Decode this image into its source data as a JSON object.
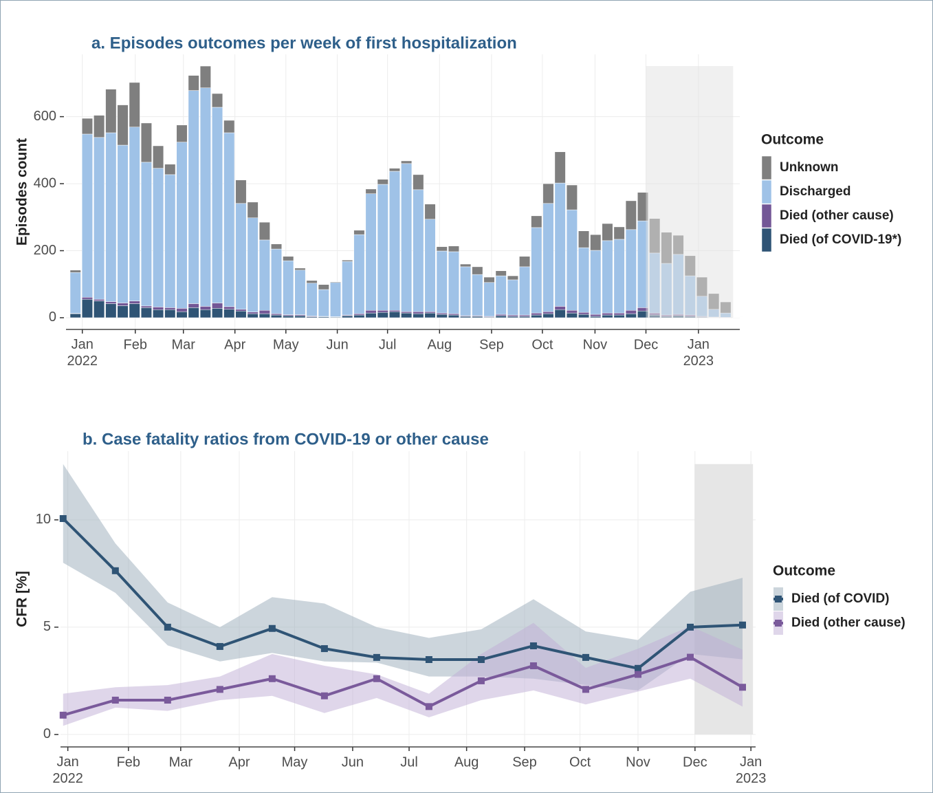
{
  "chart_data": [
    {
      "type": "bar",
      "stacked": true,
      "title": "a. Episodes outcomes per week of first hospitalization",
      "ylabel": "Episodes count",
      "legend_title": "Outcome",
      "categories": [
        null,
        null,
        null,
        null,
        null,
        null,
        null,
        null,
        null,
        null,
        null,
        null,
        null,
        null,
        null,
        null,
        null,
        null,
        null,
        null,
        null,
        null,
        null,
        null,
        null,
        null,
        null,
        null,
        null,
        null,
        null,
        null,
        null,
        null,
        null,
        null,
        null,
        null,
        null,
        null,
        null,
        null,
        null,
        null,
        null,
        null,
        null,
        null,
        null,
        null,
        null,
        null,
        null,
        null,
        null,
        null,
        null
      ],
      "series": [
        {
          "name": "Unknown",
          "color": "#7f7f7f",
          "values": [
            7,
            47,
            66,
            130,
            120,
            133,
            117,
            67,
            31,
            51,
            45,
            65,
            41,
            37,
            70,
            47,
            53,
            15,
            13,
            6,
            8,
            15,
            2,
            4,
            13,
            14,
            15,
            9,
            8,
            45,
            45,
            13,
            17,
            8,
            23,
            16,
            15,
            12,
            31,
            35,
            59,
            93,
            74,
            50,
            47,
            51,
            37,
            86,
            85,
            103,
            93,
            57,
            60,
            57,
            47,
            33,
            1
          ]
        },
        {
          "name": "Discharged",
          "color": "#9fc2e7",
          "values": [
            122,
            487,
            483,
            504,
            471,
            519,
            429,
            414,
            397,
            496,
            636,
            652,
            584,
            519,
            316,
            281,
            210,
            193,
            161,
            133,
            98,
            80,
            102,
            160,
            236,
            348,
            376,
            415,
            442,
            364,
            276,
            185,
            185,
            146,
            123,
            101,
            115,
            105,
            144,
            255,
            323,
            368,
            300,
            193,
            191,
            216,
            220,
            241,
            259,
            179,
            154,
            179,
            117,
            60,
            23,
            13,
            1
          ]
        },
        {
          "name": "Died (other cause)",
          "color": "#735796",
          "values": [
            1,
            6,
            5,
            6,
            8,
            8,
            5,
            8,
            6,
            10,
            12,
            10,
            16,
            8,
            5,
            5,
            10,
            4,
            3,
            3,
            2,
            1,
            1,
            2,
            4,
            8,
            6,
            4,
            4,
            6,
            4,
            4,
            4,
            2,
            2,
            2,
            4,
            4,
            4,
            6,
            6,
            10,
            8,
            6,
            6,
            6,
            6,
            10,
            10,
            6,
            4,
            4,
            4,
            2,
            1,
            1,
            0
          ]
        },
        {
          "name": "Died (of COVID-19*)",
          "color": "#2f5475",
          "values": [
            12,
            55,
            50,
            42,
            36,
            42,
            30,
            24,
            24,
            18,
            30,
            24,
            28,
            25,
            20,
            12,
            12,
            8,
            6,
            6,
            3,
            3,
            2,
            6,
            8,
            14,
            16,
            18,
            14,
            12,
            14,
            10,
            8,
            4,
            4,
            2,
            6,
            4,
            4,
            8,
            12,
            24,
            14,
            10,
            4,
            8,
            8,
            12,
            20,
            8,
            4,
            6,
            4,
            2,
            1,
            0,
            0
          ]
        }
      ],
      "ylim": [
        -35,
        786
      ],
      "yticks": [
        0,
        200,
        400,
        600
      ],
      "xlim": [
        -0.8,
        56.2
      ],
      "xticks": [
        {
          "value": 0.58,
          "label": "Jan\n2022"
        },
        {
          "value": 5.06,
          "label": "Feb"
        },
        {
          "value": 9.13,
          "label": "Mar"
        },
        {
          "value": 13.49,
          "label": "Apr"
        },
        {
          "value": 17.8,
          "label": "May"
        },
        {
          "value": 22.15,
          "label": "Jun"
        },
        {
          "value": 26.4,
          "label": "Jul"
        },
        {
          "value": 30.8,
          "label": "Aug"
        },
        {
          "value": 35.2,
          "label": "Sep"
        },
        {
          "value": 39.5,
          "label": "Oct"
        },
        {
          "value": 43.95,
          "label": "Nov"
        },
        {
          "value": 48.26,
          "label": "Dec"
        },
        {
          "value": 52.7,
          "label": "Jan\n2023"
        }
      ],
      "shaded_xrange": [
        48.26,
        55.64
      ],
      "grid": true
    },
    {
      "type": "line",
      "title": "b. Case fatality ratios from COVID-19 or other cause",
      "ylabel": "CFR [%]",
      "legend_title": "Outcome",
      "categories": [
        null,
        null,
        null,
        null,
        null,
        null,
        null,
        null,
        null,
        null,
        null,
        null,
        null,
        null
      ],
      "series": [
        {
          "name": "Died (of COVID)",
          "color": "#2f5475",
          "band_color": "#9aabb9",
          "values": [
            10.06,
            7.63,
            5.0,
            4.1,
            4.94,
            4.0,
            3.59,
            3.49,
            3.49,
            4.13,
            3.59,
            3.08,
            5.0,
            5.1
          ],
          "upper": [
            12.6,
            8.9,
            6.15,
            5.0,
            6.4,
            6.1,
            5.0,
            4.5,
            4.9,
            6.3,
            4.8,
            4.4,
            6.65,
            7.3
          ],
          "lower": [
            8.0,
            6.6,
            4.15,
            3.4,
            3.8,
            3.4,
            3.35,
            2.7,
            2.7,
            2.6,
            2.3,
            2.05,
            3.75,
            3.5
          ]
        },
        {
          "name": "Died (other cause)",
          "color": "#7a5a9b",
          "band_color": "#bfaed6",
          "values": [
            0.9,
            1.6,
            1.6,
            2.1,
            2.6,
            1.8,
            2.6,
            1.3,
            2.5,
            3.2,
            2.1,
            2.8,
            3.6,
            2.2
          ],
          "upper": [
            1.9,
            2.2,
            2.3,
            2.7,
            3.75,
            3.2,
            2.8,
            1.9,
            3.75,
            5.2,
            3.1,
            4.0,
            5.05,
            3.95
          ],
          "lower": [
            0.4,
            1.25,
            1.1,
            1.6,
            1.8,
            1.0,
            1.7,
            0.8,
            1.6,
            2.05,
            1.4,
            2.0,
            2.6,
            1.3
          ]
        }
      ],
      "ylim": [
        -0.58,
        13.2
      ],
      "yticks": [
        0,
        5,
        10
      ],
      "xlim": [
        -0.05,
        13.25
      ],
      "xticks": [
        {
          "value": 0.09,
          "label": "Jan\n2022"
        },
        {
          "value": 1.25,
          "label": "Feb"
        },
        {
          "value": 2.25,
          "label": "Mar"
        },
        {
          "value": 3.37,
          "label": "Apr"
        },
        {
          "value": 4.43,
          "label": "May"
        },
        {
          "value": 5.54,
          "label": "Jun"
        },
        {
          "value": 6.62,
          "label": "Jul"
        },
        {
          "value": 7.72,
          "label": "Aug"
        },
        {
          "value": 8.83,
          "label": "Sep"
        },
        {
          "value": 9.89,
          "label": "Oct"
        },
        {
          "value": 11.0,
          "label": "Nov"
        },
        {
          "value": 12.09,
          "label": "Dec"
        },
        {
          "value": 13.16,
          "label": "Jan\n2023"
        }
      ],
      "shaded_xrange": [
        12.08,
        13.2
      ],
      "grid": true
    }
  ]
}
